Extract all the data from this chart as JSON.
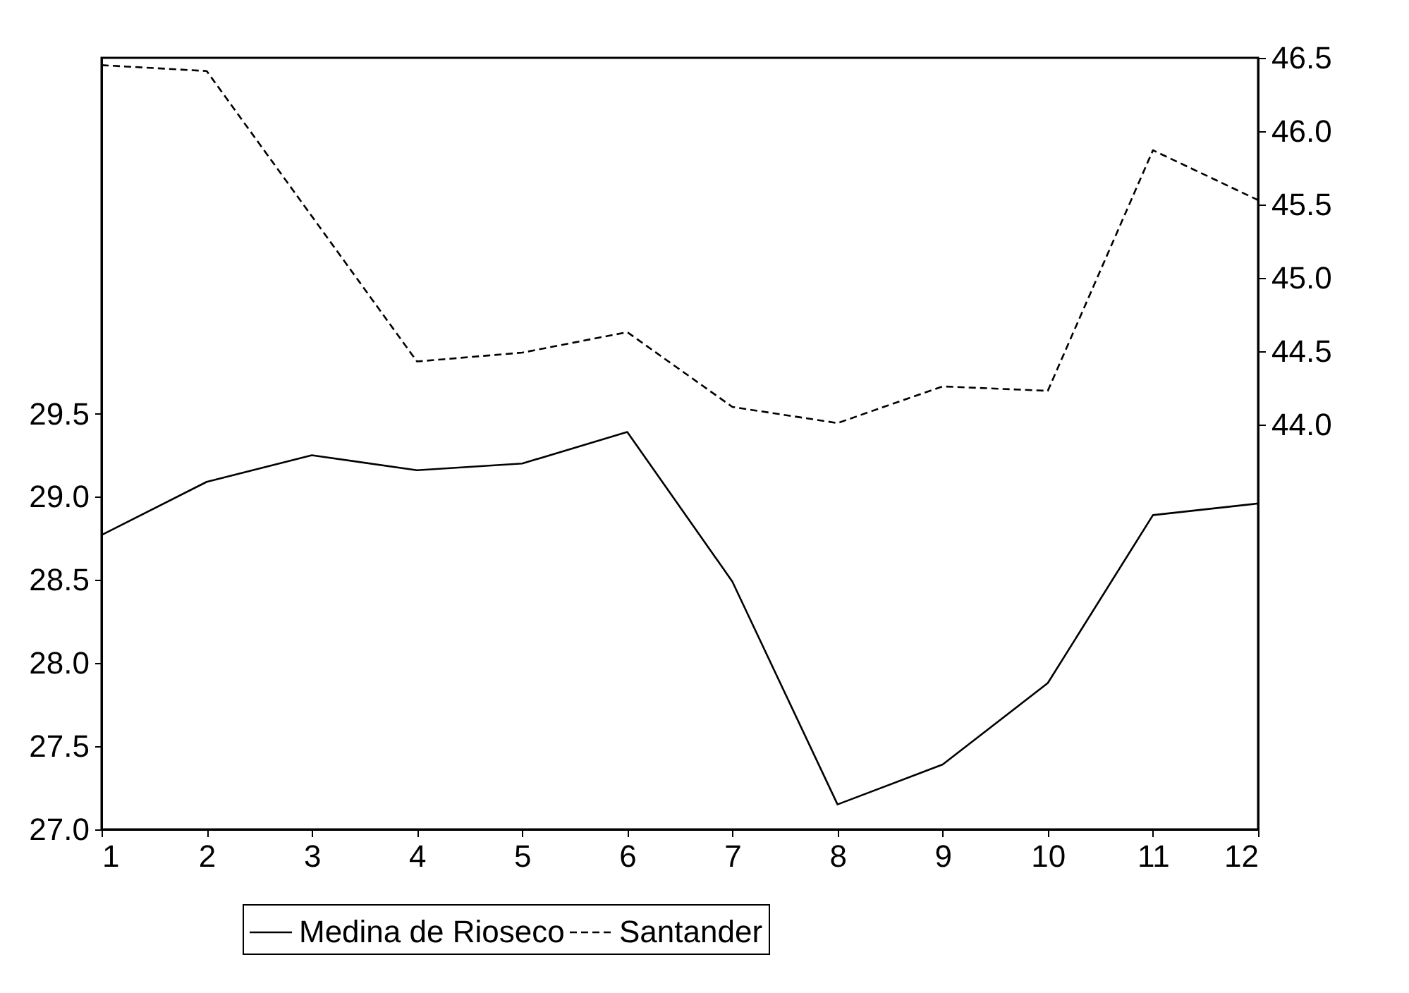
{
  "chart_data": {
    "type": "line",
    "x": [
      1,
      2,
      3,
      4,
      5,
      6,
      7,
      8,
      9,
      10,
      11,
      12
    ],
    "xlim": [
      1,
      12
    ],
    "xticks": [
      1,
      2,
      3,
      4,
      5,
      6,
      7,
      8,
      9,
      10,
      11,
      12
    ],
    "ylim": [
      27.0,
      31.64
    ],
    "yticks": [
      {
        "value": 27.0,
        "label": "27.0"
      },
      {
        "value": 27.5,
        "label": "27.5"
      },
      {
        "value": 28.0,
        "label": "28.0"
      },
      {
        "value": 28.5,
        "label": "28.5"
      },
      {
        "value": 29.0,
        "label": "29.0"
      },
      {
        "value": 29.5,
        "label": "29.5"
      }
    ],
    "y2lim": [
      41.24,
      46.5
    ],
    "y2ticks": [
      {
        "value": 44.0,
        "label": "44.0"
      },
      {
        "value": 44.5,
        "label": "44.5"
      },
      {
        "value": 45.0,
        "label": "45.0"
      },
      {
        "value": 45.5,
        "label": "45.5"
      },
      {
        "value": 46.0,
        "label": "46.0"
      },
      {
        "value": 46.5,
        "label": "46.5"
      }
    ],
    "legend": "bottom",
    "series": [
      {
        "name": "Medina de Rioseco",
        "color": "#000000",
        "line_style": "solid",
        "values": [
          28.77,
          29.09,
          29.25,
          29.16,
          29.2,
          29.39,
          28.49,
          27.15,
          27.39,
          27.88,
          28.89,
          28.96
        ]
      },
      {
        "name": "Santander",
        "color": "#000000",
        "line_style": "dashed",
        "axis": "y2",
        "values": [
          46.45,
          46.41,
          45.42,
          44.43,
          44.49,
          44.63,
          44.12,
          44.01,
          44.26,
          44.23,
          45.87,
          45.53
        ]
      }
    ]
  }
}
